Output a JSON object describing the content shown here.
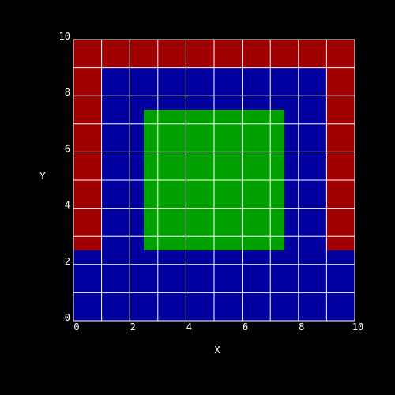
{
  "chart_data": {
    "type": "heatmap",
    "xlabel": "X",
    "ylabel": "Y",
    "xlim": [
      0,
      10
    ],
    "ylim": [
      0,
      10
    ],
    "x_ticks": [
      "0",
      "2",
      "4",
      "6",
      "8",
      "10"
    ],
    "y_ticks": [
      "0",
      "2",
      "4",
      "6",
      "8",
      "10"
    ],
    "grid": true,
    "grid_x_step": 1,
    "grid_y_step": 1,
    "colors": {
      "background": "#000000",
      "text": "#FFFFFF",
      "grid": "#FFFFFF",
      "red": "#A00000",
      "blue": "#0000A0",
      "green": "#00A000"
    },
    "regions": [
      {
        "color": "blue",
        "x": [
          0,
          10
        ],
        "y": [
          0,
          10
        ]
      },
      {
        "color": "red",
        "x": [
          0,
          10
        ],
        "y": [
          9,
          10
        ]
      },
      {
        "color": "red",
        "x": [
          0,
          1
        ],
        "y": [
          2.5,
          9
        ]
      },
      {
        "color": "red",
        "x": [
          9,
          10
        ],
        "y": [
          2.5,
          9
        ]
      },
      {
        "color": "green",
        "x": [
          2.5,
          7.5
        ],
        "y": [
          2.5,
          7.5
        ]
      }
    ]
  }
}
